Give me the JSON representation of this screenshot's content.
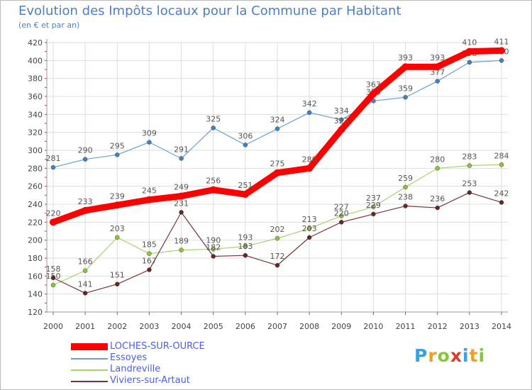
{
  "title": "Evolution des Impôts locaux pour la Commune par Habitant",
  "subtitle": "(en € et par an)",
  "logo": "Proxiti",
  "logo_letters": [
    {
      "ch": "P",
      "color": "#3aa0de"
    },
    {
      "ch": "r",
      "color": "#f0a020"
    },
    {
      "ch": "o",
      "color": "#8cc43c"
    },
    {
      "ch": "x",
      "color": "#e03a2a"
    },
    {
      "ch": "i",
      "color": "#3aa0de"
    },
    {
      "ch": "t",
      "color": "#f0a020"
    },
    {
      "ch": "i",
      "color": "#8cc43c"
    }
  ],
  "chart_data": {
    "type": "line",
    "title": "Evolution des Impôts locaux pour la Commune par Habitant",
    "subtitle": "(en € et par an)",
    "x": [
      2000,
      2001,
      2002,
      2003,
      2004,
      2005,
      2006,
      2007,
      2008,
      2009,
      2010,
      2011,
      2012,
      2013,
      2014
    ],
    "ylim": [
      120,
      420
    ],
    "yticks": [
      120,
      140,
      160,
      180,
      200,
      220,
      240,
      260,
      280,
      300,
      320,
      340,
      360,
      380,
      400,
      420
    ],
    "grid": true,
    "legend_position": "bottom-left",
    "series": [
      {
        "name": "Essoyes",
        "color": "#6a9fcf",
        "marker": "#3f82c4",
        "values": [
          281,
          290,
          295,
          309,
          291,
          325,
          306,
          324,
          342,
          334,
          355,
          359,
          377,
          398,
          400
        ],
        "labels": [
          "281",
          "290",
          "295",
          "309",
          "291",
          "325",
          "306",
          "324",
          "342",
          "334",
          "355",
          "359",
          "377",
          "398",
          "400"
        ]
      },
      {
        "name": "Landreville",
        "color": "#a7d36f",
        "marker": "#8cc43c",
        "values": [
          150,
          166,
          203,
          185,
          189,
          190,
          193,
          202,
          213,
          227,
          237,
          259,
          280,
          283,
          284
        ],
        "labels": [
          "150",
          "166",
          "203",
          "185",
          "189",
          "190",
          "193",
          "202",
          "213",
          "227",
          "237",
          "259",
          "280",
          "283",
          "284"
        ]
      },
      {
        "name": "Viviers-sur-Artaut",
        "color": "#7a3434",
        "marker": "#6b2323",
        "values": [
          158,
          141,
          151,
          167,
          231,
          182,
          183,
          172,
          203,
          220,
          229,
          238,
          236,
          253,
          242
        ],
        "labels": [
          "158",
          "141",
          "151",
          "167",
          "231",
          "182",
          "183",
          "172",
          "203",
          "220",
          "229",
          "238",
          "236",
          "253",
          "242"
        ]
      },
      {
        "name": "LOCHES-SUR-OURCE",
        "color": "#ff0000",
        "marker": "#ff0000",
        "values": [
          220,
          233,
          239,
          245,
          249,
          256,
          251,
          275,
          280,
          323,
          363,
          393,
          393,
          410,
          411
        ],
        "labels": [
          "220",
          "233",
          "239",
          "245",
          "249",
          "256",
          "251",
          "275",
          "280",
          "323",
          "363",
          "393",
          "393",
          "410",
          "411"
        ]
      }
    ],
    "legend": [
      {
        "name": "LOCHES-SUR-OURCE",
        "color": "#ff0000",
        "text_color": "#4a5cff"
      },
      {
        "name": "Essoyes",
        "color": "#6a9fcf",
        "text_color": "#4a5cff"
      },
      {
        "name": "Landreville",
        "color": "#a7d36f",
        "text_color": "#4a5cff"
      },
      {
        "name": "Viviers-sur-Artaut",
        "color": "#7a3434",
        "text_color": "#4a5cff"
      }
    ]
  }
}
